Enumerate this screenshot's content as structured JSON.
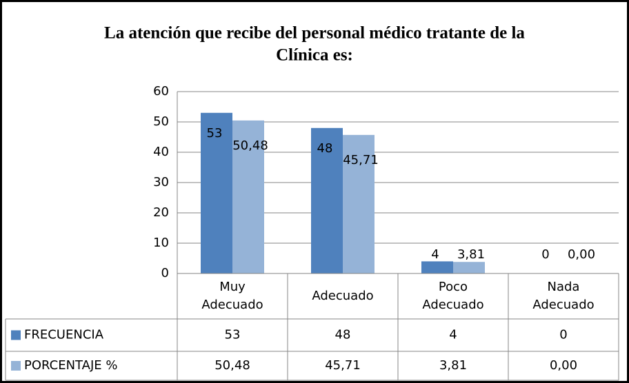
{
  "chart_data": {
    "type": "bar",
    "title": [
      "La atención que recibe del personal médico tratante de la",
      "Clínica es:"
    ],
    "categories": [
      "Muy Adecuado",
      "Adecuado",
      "Poco Adecuado",
      "Nada Adecuado"
    ],
    "series": [
      {
        "name": "FRECUENCIA",
        "color": "#4f81bd",
        "values": [
          53,
          48,
          4,
          0
        ]
      },
      {
        "name": "PORCENTAJE %",
        "color": "#95b3d7",
        "values": [
          50.48,
          45.71,
          3.81,
          0
        ],
        "value_labels": [
          "50,48",
          "45,71",
          "3,81",
          "0,00"
        ]
      }
    ],
    "ylim": [
      0,
      60
    ],
    "yticks": [
      0,
      10,
      20,
      30,
      40,
      50,
      60
    ],
    "grid": true
  }
}
